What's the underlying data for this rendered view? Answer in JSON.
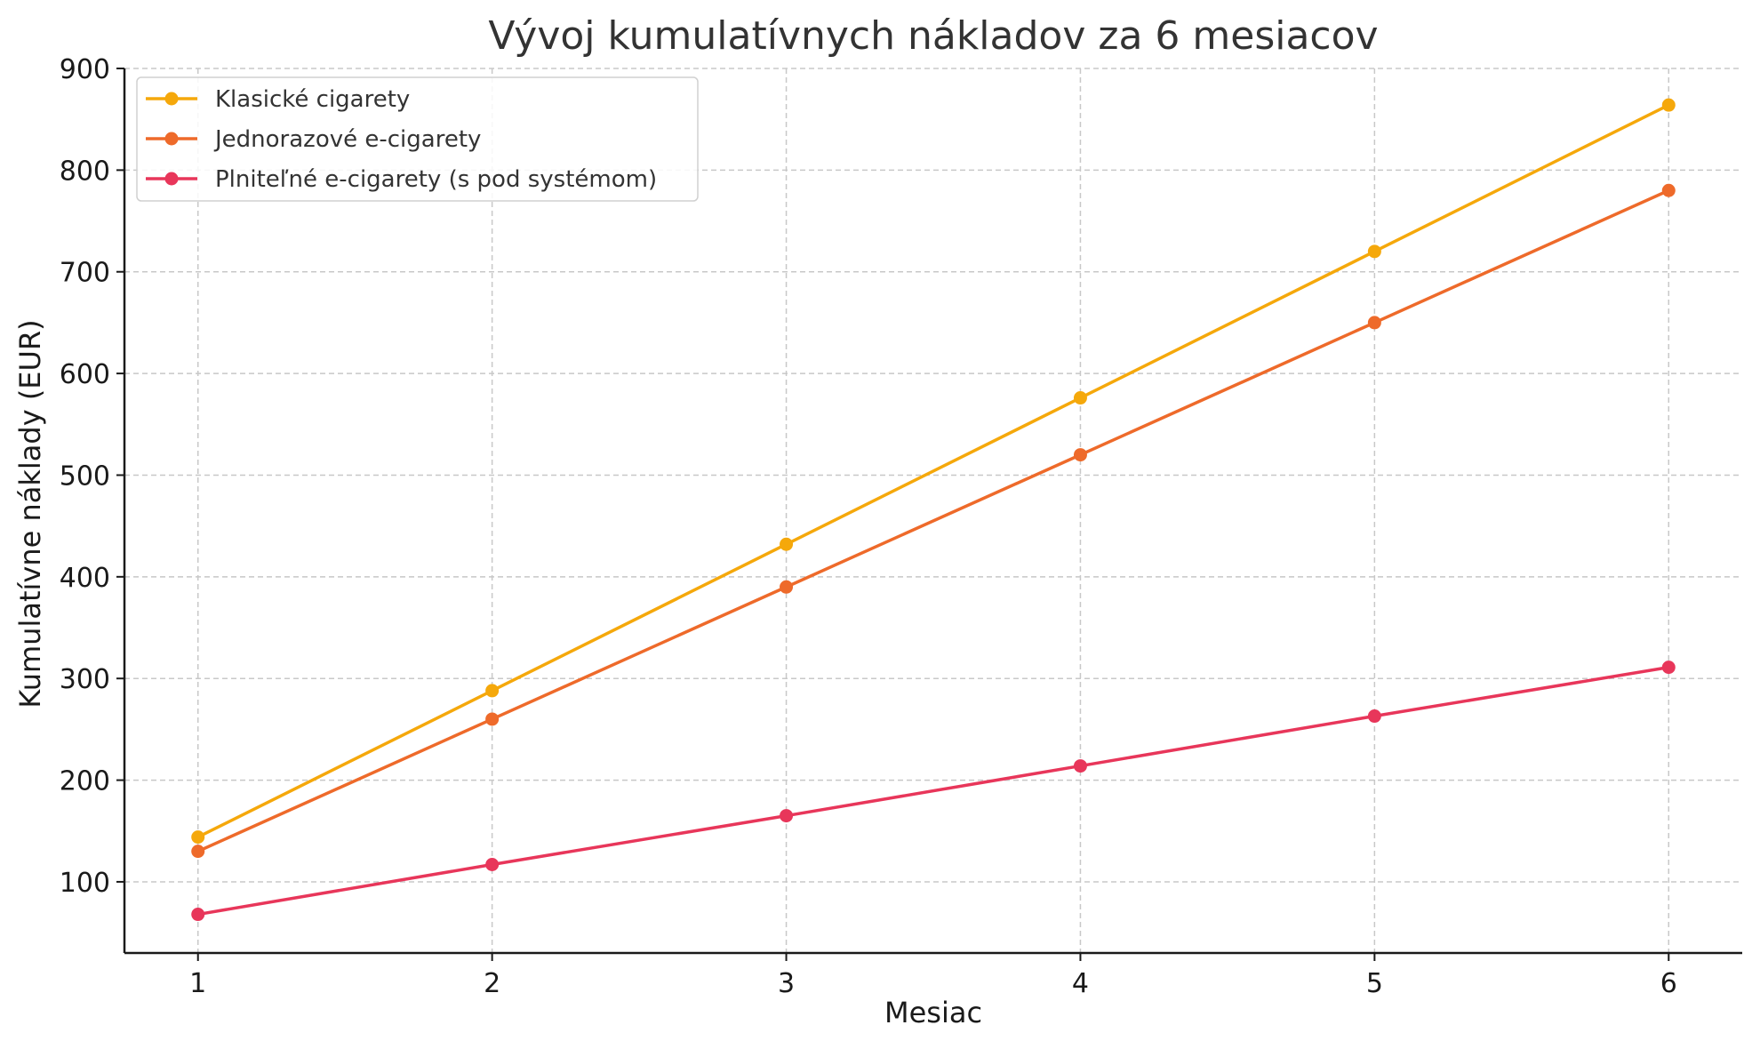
{
  "chart_data": {
    "type": "line",
    "title": "Vývoj kumulatívnych nákladov za 6 mesiacov",
    "xlabel": "Mesiac",
    "ylabel": "Kumulatívne náklady (EUR)",
    "x": [
      1,
      2,
      3,
      4,
      5,
      6
    ],
    "xlim": [
      0.75,
      6.25
    ],
    "ylim": [
      30,
      900
    ],
    "yticks": [
      100,
      200,
      300,
      400,
      500,
      600,
      700,
      800,
      900
    ],
    "grid": true,
    "legend_position": "top-left",
    "series": [
      {
        "name": "Klasické cigarety",
        "color": "#f5a80b",
        "values": [
          144,
          288,
          432,
          576,
          720,
          864
        ]
      },
      {
        "name": "Jednorazové e-cigarety",
        "color": "#ee6a2a",
        "values": [
          130,
          260,
          390,
          520,
          650,
          780
        ]
      },
      {
        "name": "Plniteľné e-cigarety (s pod systémom)",
        "color": "#e8365a",
        "values": [
          68,
          117,
          165,
          214,
          263,
          311
        ]
      }
    ]
  }
}
